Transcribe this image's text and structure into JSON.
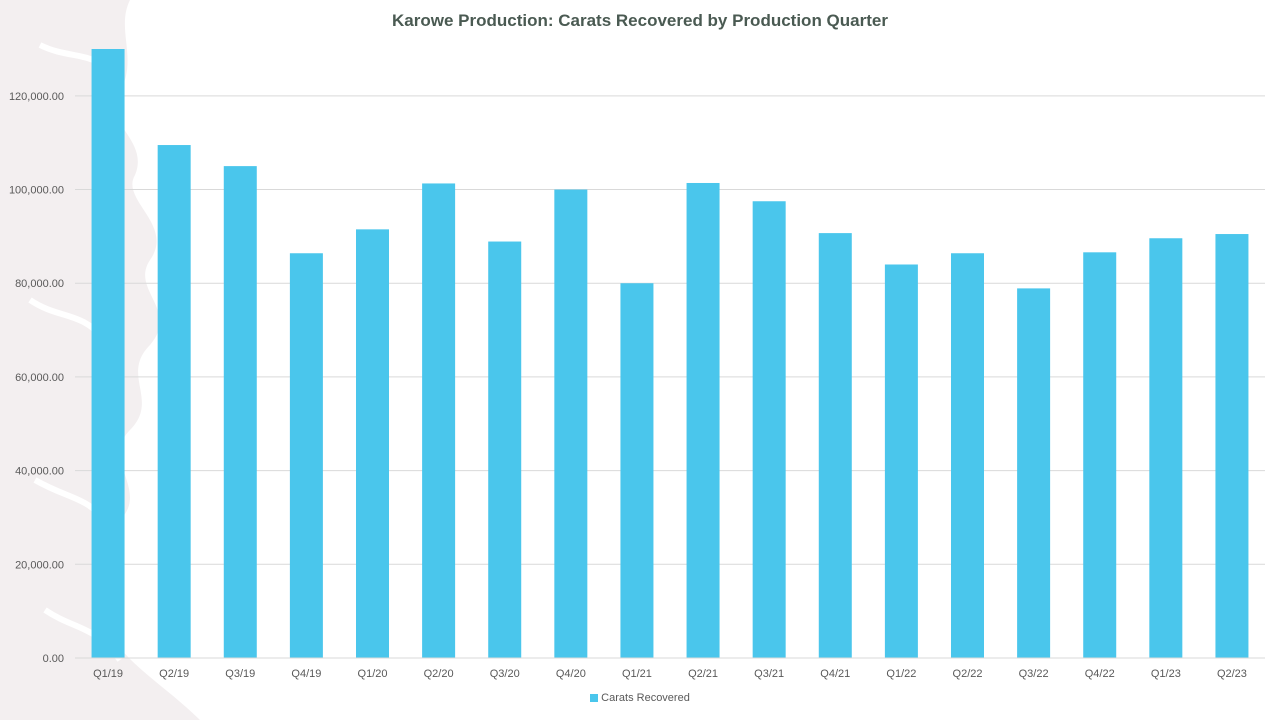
{
  "chart_data": {
    "type": "bar",
    "title": "Karowe Production: Carats Recovered by Production Quarter",
    "categories": [
      "Q1/19",
      "Q2/19",
      "Q3/19",
      "Q4/19",
      "Q1/20",
      "Q2/20",
      "Q3/20",
      "Q4/20",
      "Q1/21",
      "Q2/21",
      "Q3/21",
      "Q4/21",
      "Q1/22",
      "Q2/22",
      "Q3/22",
      "Q4/22",
      "Q1/23",
      "Q2/23"
    ],
    "series": [
      {
        "name": "Carats Recovered",
        "color": "#4ac6ec",
        "values": [
          130000,
          109500,
          105000,
          86400,
          91500,
          101300,
          88900,
          100000,
          80000,
          101400,
          97500,
          90700,
          84000,
          86400,
          78900,
          86600,
          89600,
          90500
        ]
      }
    ],
    "ylim": [
      0,
      130000
    ],
    "yticks": [
      "0.00",
      "20,000.00",
      "40,000.00",
      "60,000.00",
      "80,000.00",
      "100,000.00",
      "120,000.00"
    ],
    "ytick_values": [
      0,
      20000,
      40000,
      60000,
      80000,
      100000,
      120000
    ],
    "xlabel": "",
    "ylabel": "",
    "grid": true,
    "legend_position": "bottom",
    "colors": {
      "gridline": "#d9d9d9",
      "axis_text": "#595959",
      "title": "#4a5a52"
    }
  }
}
